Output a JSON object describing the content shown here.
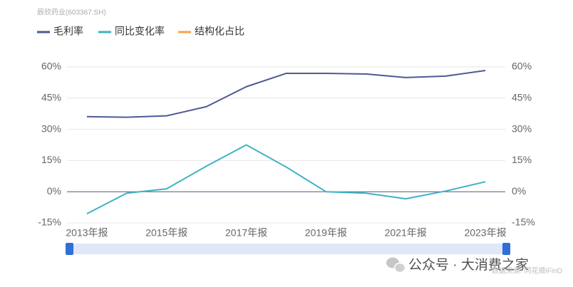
{
  "chart_data": {
    "type": "line",
    "title": "辰欣药业(603367.SH)",
    "categories": [
      "2013年报",
      null,
      "2015年报",
      null,
      "2017年报",
      null,
      "2019年报",
      null,
      "2021年报",
      null,
      "2023年报"
    ],
    "series": [
      {
        "name": "毛利率",
        "color": "#4e5a96",
        "values": [
          36.1,
          35.8,
          36.5,
          40.9,
          50.5,
          56.9,
          56.9,
          56.6,
          54.9,
          55.6,
          58.3
        ]
      },
      {
        "name": "同比变化率",
        "color": "#3eb2c6",
        "values": [
          -10.6,
          -0.7,
          1.4,
          12.3,
          22.5,
          11.9,
          0,
          -0.7,
          -3.4,
          0.3,
          4.8
        ]
      },
      {
        "name": "结构化占比",
        "color": "#f5a54a",
        "values": [
          null,
          null,
          null,
          null,
          null,
          null,
          null,
          null,
          null,
          null,
          null
        ]
      }
    ],
    "ylim": [
      -15,
      60
    ],
    "yticks": [
      {
        "value": -15,
        "label": "-15%"
      },
      {
        "value": 0,
        "label": "0%"
      },
      {
        "value": 15,
        "label": "15%"
      },
      {
        "value": 30,
        "label": "30%"
      },
      {
        "value": 45,
        "label": "45%"
      },
      {
        "value": 60,
        "label": "60%"
      }
    ],
    "y2lim": [
      -15,
      60
    ],
    "y2ticks": [
      {
        "value": -15,
        "label": "-15%"
      },
      {
        "value": 0,
        "label": "0%"
      },
      {
        "value": 15,
        "label": "15%"
      },
      {
        "value": 30,
        "label": "30%"
      },
      {
        "value": 45,
        "label": "45%"
      },
      {
        "value": 60,
        "label": "60%"
      }
    ],
    "grid": true,
    "legend": "top",
    "watermark": "公众号 · 大消费之家",
    "source": "数据来源: 同花顺iFinD"
  }
}
